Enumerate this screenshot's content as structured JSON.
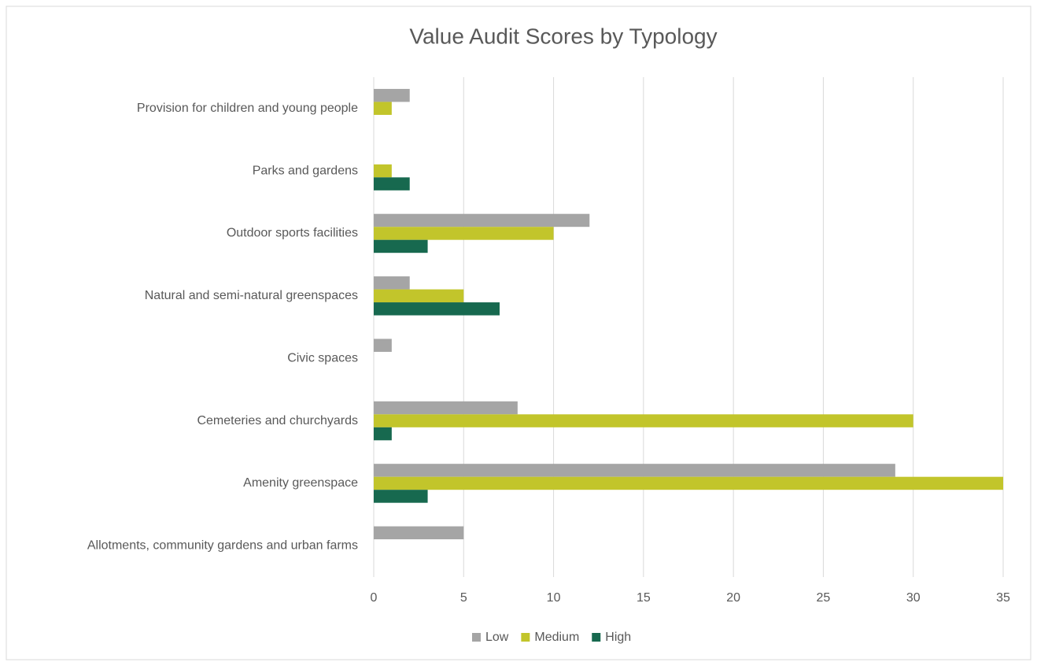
{
  "chart_data": {
    "type": "hbar",
    "title": "Value Audit Scores by Typology",
    "categories": [
      "Provision for children and young people",
      "Parks and gardens",
      "Outdoor sports facilities",
      "Natural and semi-natural greenspaces",
      "Civic spaces",
      "Cemeteries and churchyards",
      "Amenity greenspace",
      "Allotments, community gardens and urban farms"
    ],
    "series": [
      {
        "name": "Low",
        "color": "#a5a5a5",
        "values": [
          2,
          0,
          12,
          2,
          1,
          8,
          29,
          5
        ]
      },
      {
        "name": "Medium",
        "color": "#c2c52b",
        "values": [
          1,
          1,
          10,
          5,
          0,
          30,
          35,
          0
        ]
      },
      {
        "name": "High",
        "color": "#17694f",
        "values": [
          0,
          2,
          3,
          7,
          0,
          1,
          3,
          0
        ]
      }
    ],
    "xlim": [
      0,
      35
    ],
    "xticks": [
      0,
      5,
      10,
      15,
      20,
      25,
      30,
      35
    ],
    "grid": true,
    "legend": "bottom"
  }
}
